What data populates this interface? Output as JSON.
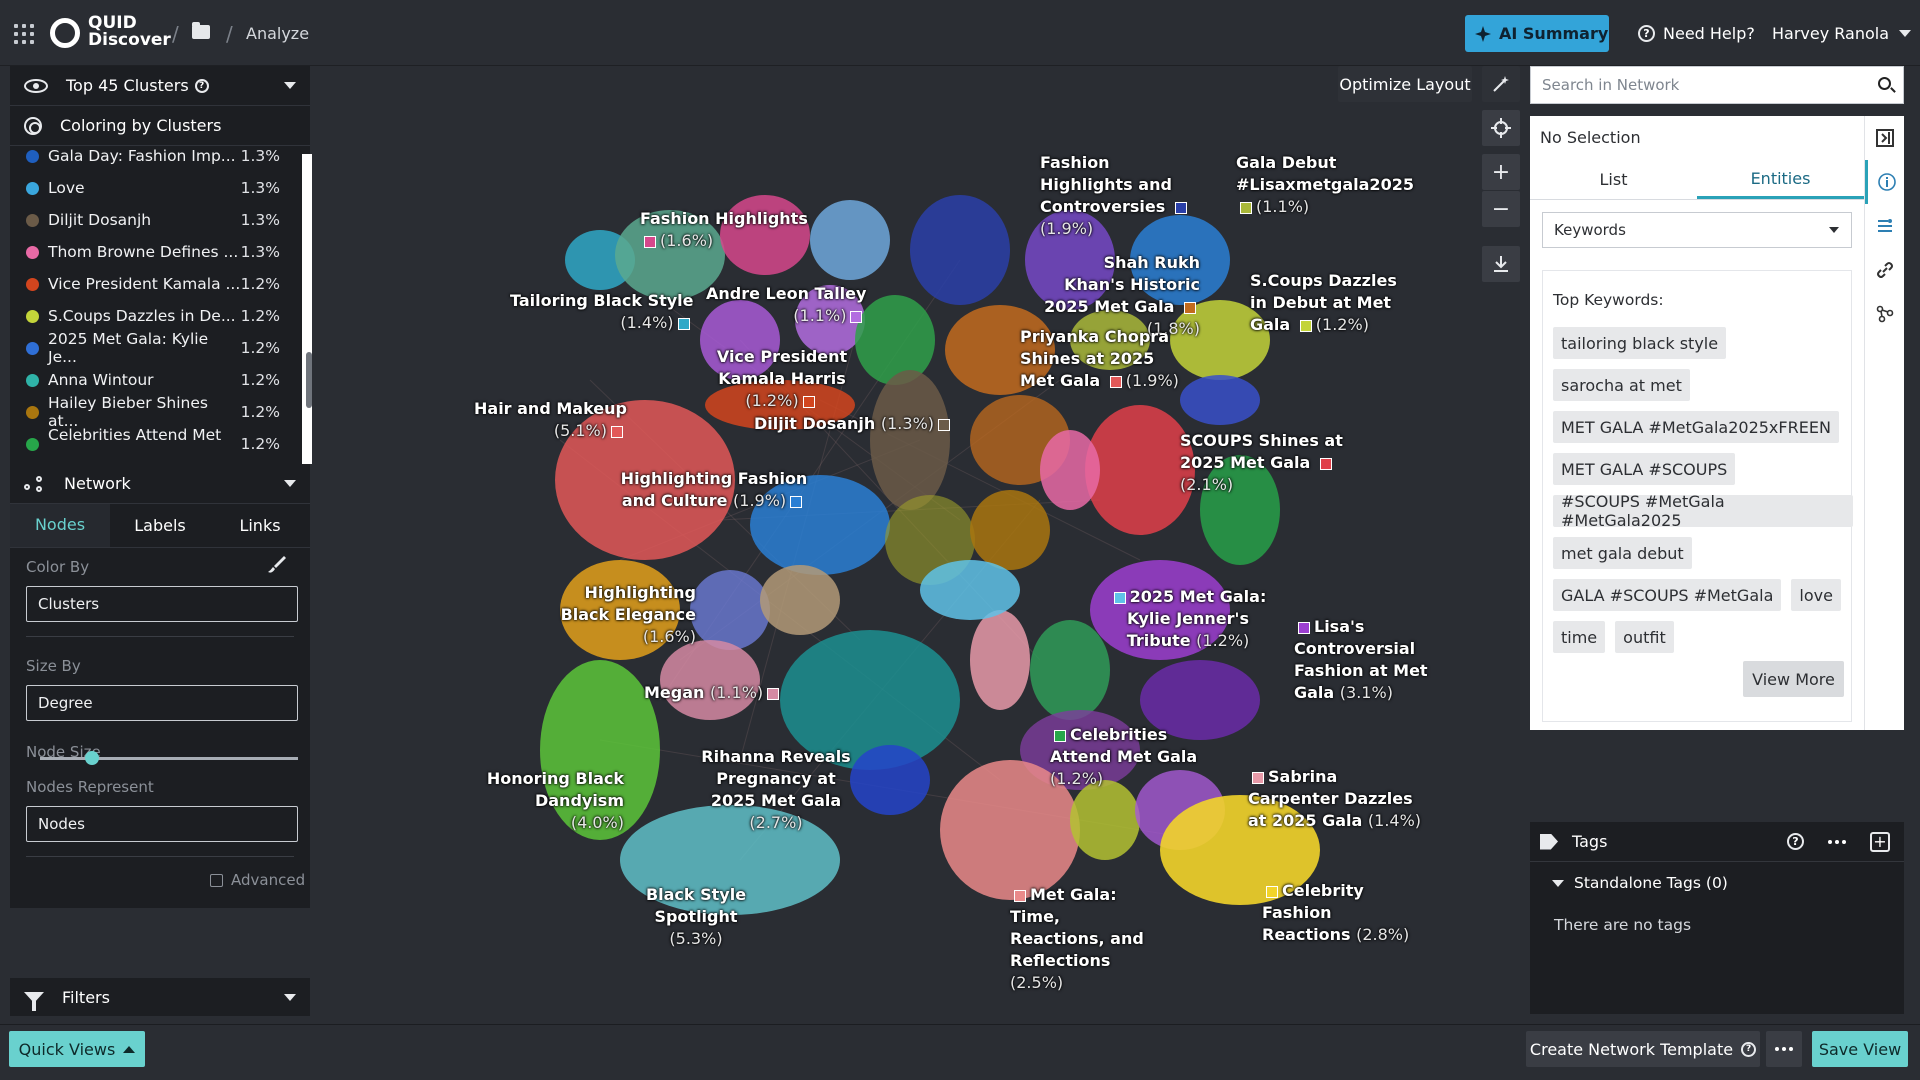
{
  "header": {
    "logo_line1": "QUID",
    "logo_line2": "Discover",
    "breadcrumb_sep1": "/",
    "breadcrumb_sep2": "/",
    "breadcrumb_current": "Analyze",
    "ai_summary_label": "AI Summary",
    "help_label": "Need Help?",
    "user_name": "Harvey Ranola"
  },
  "left_panel": {
    "clusters_header": "Top 45 Clusters",
    "coloring_header": "Coloring by Clusters",
    "clusters": [
      {
        "label": "Gala Day: Fashion Imp...",
        "pct": "1.3%",
        "color": "#1f5fbf"
      },
      {
        "label": "Love",
        "pct": "1.3%",
        "color": "#3aa7de"
      },
      {
        "label": "Diljit Dosanjh",
        "pct": "1.3%",
        "color": "#6b5b48"
      },
      {
        "label": "Thom Browne Defines ...",
        "pct": "1.3%",
        "color": "#e86aa6"
      },
      {
        "label": "Vice President Kamala ...",
        "pct": "1.2%",
        "color": "#d2451e"
      },
      {
        "label": "S.Coups Dazzles in De...",
        "pct": "1.2%",
        "color": "#c3d43a"
      },
      {
        "label": "2025 Met Gala: Kylie Je...",
        "pct": "1.2%",
        "color": "#2f6fd6"
      },
      {
        "label": "Anna Wintour",
        "pct": "1.2%",
        "color": "#2fb3a8"
      },
      {
        "label": "Hailey Bieber Shines at...",
        "pct": "1.2%",
        "color": "#a9760f"
      },
      {
        "label": "Celebrities Attend Met ...",
        "pct": "1.2%",
        "color": "#27a64a"
      }
    ],
    "network_header": "Network",
    "tabs": [
      "Nodes",
      "Labels",
      "Links"
    ],
    "color_by_label": "Color By",
    "color_by_value": "Clusters",
    "size_by_label": "Size By",
    "size_by_value": "Degree",
    "node_size_label": "Node Size",
    "node_size_value": 0.2,
    "nodes_represent_label": "Nodes Represent",
    "nodes_represent_value": "Nodes",
    "advanced_label": "Advanced",
    "filters_label": "Filters"
  },
  "canvas": {
    "optimize_label": "Optimize Layout",
    "labels": [
      {
        "name": "Fashion Highlights",
        "pct": "(1.6%)"
      },
      {
        "name": "Tailoring Black Style",
        "pct": "(1.4%)"
      },
      {
        "name": "Andre Leon Talley",
        "pct": "(1.1%)"
      },
      {
        "name": "Vice President Kamala Harris",
        "pct": "(1.2%)"
      },
      {
        "name": "Hair and Makeup",
        "pct": "(5.1%)"
      },
      {
        "name": "Diljit Dosanjh",
        "pct": "(1.3%)"
      },
      {
        "name": "Highlighting Fashion and Culture",
        "pct": "(1.9%)"
      },
      {
        "name": "Highlighting Black Elegance",
        "pct": "(1.6%)"
      },
      {
        "name": "Megan",
        "pct": "(1.1%)"
      },
      {
        "name": "Honoring Black Dandyism",
        "pct": "(4.0%)"
      },
      {
        "name": "Rihanna Reveals Pregnancy at 2025 Met Gala",
        "pct": "(2.7%)"
      },
      {
        "name": "Black Style Spotlight",
        "pct": "(5.3%)"
      },
      {
        "name": "Fashion Highlights and Controversies",
        "pct": "(1.9%)"
      },
      {
        "name": "Gala Debut #Lisaxmetgala2025",
        "pct": "(1.1%)"
      },
      {
        "name": "Shah Rukh Khan's Historic 2025 Met Gala",
        "pct": "(1.8%)"
      },
      {
        "name": "S.Coups Dazzles in Debut at Met Gala",
        "pct": "(1.2%)"
      },
      {
        "name": "Priyanka Chopra Shines at 2025 Met Gala",
        "pct": "(1.9%)"
      },
      {
        "name": "SCOUPS Shines at 2025 Met Gala",
        "pct": "(2.1%)"
      },
      {
        "name": "2025 Met Gala: Kylie Jenner's Tribute",
        "pct": "(1.2%)"
      },
      {
        "name": "Lisa's Controversial Fashion at Met Gala",
        "pct": "(3.1%)"
      },
      {
        "name": "Celebrities Attend Met Gala",
        "pct": "(1.2%)"
      },
      {
        "name": "Sabrina Carpenter Dazzles at 2025 Gala",
        "pct": "(1.4%)"
      },
      {
        "name": "Met Gala: Time, Reactions, and Reflections",
        "pct": "(2.5%)"
      },
      {
        "name": "Celebrity Fashion Reactions",
        "pct": "(2.8%)"
      }
    ]
  },
  "right_panel": {
    "search_placeholder": "Search in Network",
    "selection_title": "No Selection",
    "tabs": [
      "List",
      "Entities"
    ],
    "keyword_select": "Keywords",
    "top_keywords_title": "Top Keywords:",
    "keywords": [
      "tailoring black style",
      "sarocha at met",
      "MET GALA #MetGala2025xFREEN",
      "MET GALA #SCOUPS",
      "#SCOUPS #MetGala #MetGala2025",
      "met gala debut",
      "GALA #SCOUPS #MetGala",
      "love",
      "time",
      "outfit"
    ],
    "view_more_label": "View More",
    "tags_header": "Tags",
    "standalone_tags_label": "Standalone Tags (0)",
    "no_tags_text": "There are no tags"
  },
  "bottom": {
    "quick_views_label": "Quick Views",
    "create_template_label": "Create Network Template",
    "save_view_label": "Save View"
  }
}
